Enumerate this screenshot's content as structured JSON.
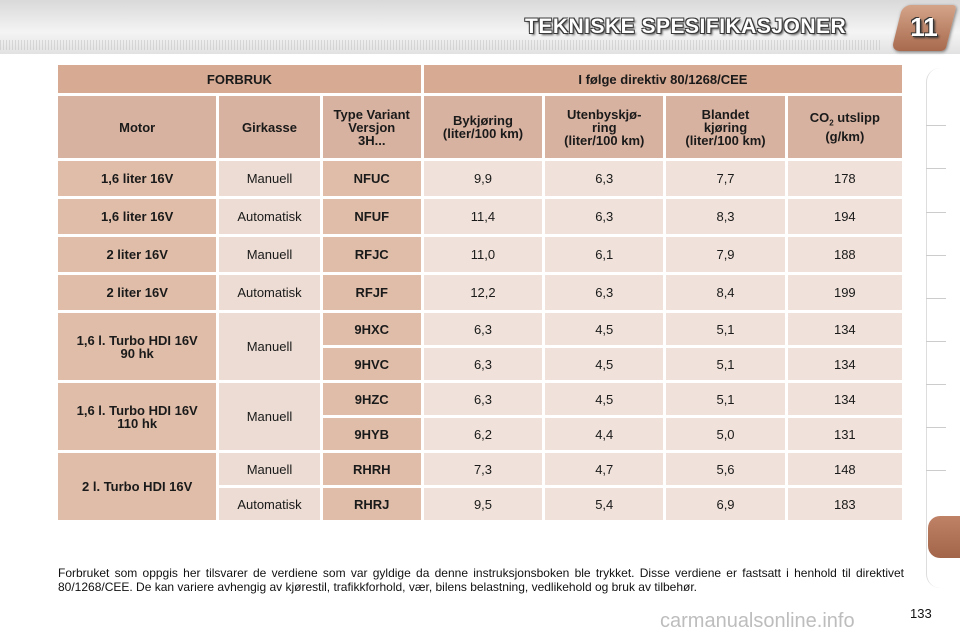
{
  "header": {
    "title": "TEKNISKE SPESIFIKASJONER",
    "chapter": "11"
  },
  "table": {
    "group_left": "FORBRUK",
    "group_right": "I følge direktiv 80/1268/CEE",
    "columns": {
      "motor": "Motor",
      "gearbox": "Girkasse",
      "type_line1": "Type Variant",
      "type_line2": "Versjon",
      "type_line3": "3H...",
      "urban_line1": "Bykjøring",
      "urban_line2": "(liter/100 km)",
      "extra_line1": "Utenbyskjø-",
      "extra_line2": "ring",
      "extra_line3": "(liter/100 km)",
      "mixed_line1": "Blandet",
      "mixed_line2": "kjøring",
      "mixed_line3": "(liter/100 km)",
      "co2_prefix": "CO",
      "co2_sub": "2",
      "co2_suffix": " utslipp",
      "co2_line2": "(g/km)"
    },
    "groups": [
      {
        "motor": [
          "1,6 liter 16V"
        ],
        "gearbox": "Manuell",
        "rows": [
          {
            "type": "NFUC",
            "urban": "9,9",
            "extra": "6,3",
            "mixed": "7,7",
            "co2": "178"
          }
        ]
      },
      {
        "motor": [
          "1,6 liter 16V"
        ],
        "gearbox": "Automatisk",
        "rows": [
          {
            "type": "NFUF",
            "urban": "11,4",
            "extra": "6,3",
            "mixed": "8,3",
            "co2": "194"
          }
        ]
      },
      {
        "motor": [
          "2 liter 16V"
        ],
        "gearbox": "Manuell",
        "rows": [
          {
            "type": "RFJC",
            "urban": "11,0",
            "extra": "6,1",
            "mixed": "7,9",
            "co2": "188"
          }
        ]
      },
      {
        "motor": [
          "2 liter 16V"
        ],
        "gearbox": "Automatisk",
        "rows": [
          {
            "type": "RFJF",
            "urban": "12,2",
            "extra": "6,3",
            "mixed": "8,4",
            "co2": "199"
          }
        ]
      },
      {
        "motor": [
          "1,6 l. Turbo HDI 16V",
          "90 hk"
        ],
        "gearbox": "Manuell",
        "rows": [
          {
            "type": "9HXC",
            "urban": "6,3",
            "extra": "4,5",
            "mixed": "5,1",
            "co2": "134"
          },
          {
            "type": "9HVC",
            "urban": "6,3",
            "extra": "4,5",
            "mixed": "5,1",
            "co2": "134"
          }
        ]
      },
      {
        "motor": [
          "1,6 l. Turbo HDI 16V",
          "110 hk"
        ],
        "gearbox": "Manuell",
        "rows": [
          {
            "type": "9HZC",
            "urban": "6,3",
            "extra": "4,5",
            "mixed": "5,1",
            "co2": "134"
          },
          {
            "type": "9HYB",
            "urban": "6,2",
            "extra": "4,4",
            "mixed": "5,0",
            "co2": "131"
          }
        ]
      },
      {
        "motor": [
          "2 l. Turbo HDI 16V"
        ],
        "gearbox": null,
        "rows": [
          {
            "gearbox": "Manuell",
            "type": "RHRH",
            "urban": "7,3",
            "extra": "4,7",
            "mixed": "5,6",
            "co2": "148"
          },
          {
            "gearbox": "Automatisk",
            "type": "RHRJ",
            "urban": "9,5",
            "extra": "5,4",
            "mixed": "6,9",
            "co2": "183"
          }
        ]
      }
    ]
  },
  "footnote": "Forbruket som oppgis her tilsvarer de verdiene som var gyldige da denne instruksjonsboken ble trykket. Disse verdiene er fastsatt i henhold til direktivet 80/1268/CEE. De kan variere avhengig av kjørestil, trafikkforhold, vær, bilens belastning, vedlikehold og bruk av tilbehør.",
  "page_number": "133",
  "watermark": "carmanualsonline.info",
  "colors": {
    "accent": "#a86a4e",
    "header_cell": "#d7aa93",
    "value_cell": "#f0e2da"
  }
}
